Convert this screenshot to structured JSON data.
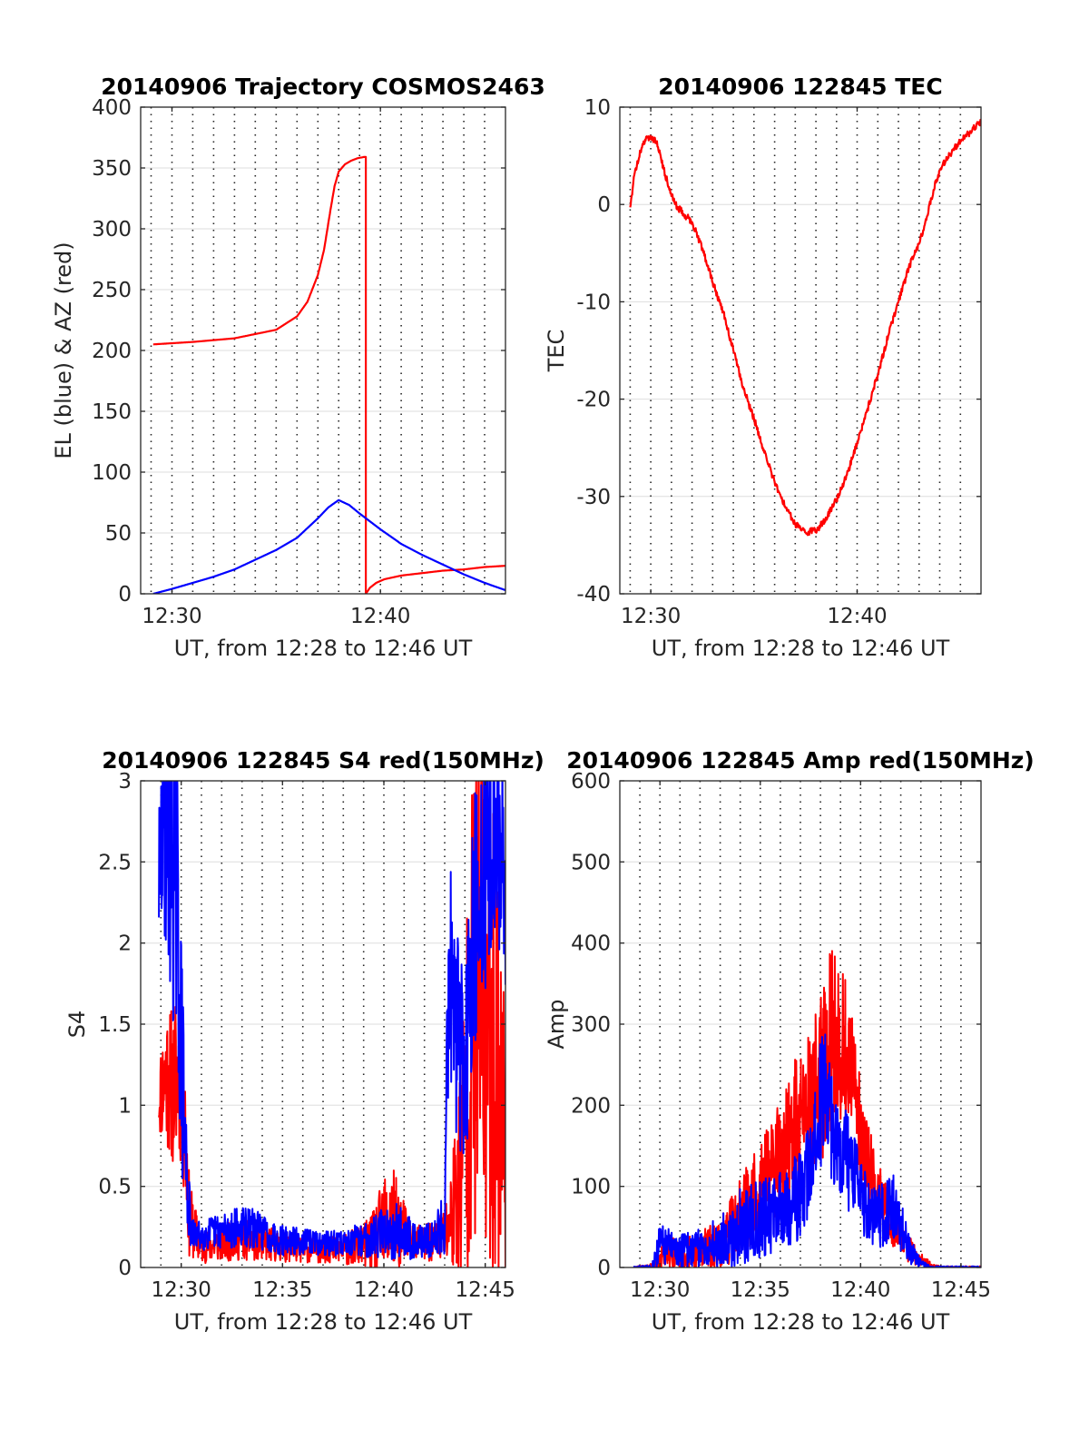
{
  "chart_data": [
    {
      "type": "line",
      "title": "20140906 Trajectory COSMOS2463",
      "xlabel": "UT, from 12:28 to 12:46 UT",
      "ylabel": "EL (blue) & AZ (red)",
      "x_unit": "minutes of hour 12 UT",
      "xlim": [
        28.5,
        46
      ],
      "ylim": [
        0,
        400
      ],
      "xticks": [
        {
          "value": 30,
          "label": "12:30"
        },
        {
          "value": 40,
          "label": "12:40"
        }
      ],
      "yticks": [
        0,
        50,
        100,
        150,
        200,
        250,
        300,
        350,
        400
      ],
      "minor_grid_x_step": 1,
      "grid": true,
      "series": [
        {
          "color": "#ff0000",
          "style": "smooth",
          "x": [
            29.1,
            31,
            33,
            35,
            36,
            36.5,
            37,
            37.3,
            37.6,
            37.8,
            38,
            38.3,
            38.6,
            38.9,
            39.2,
            39.3,
            39.3,
            39.5,
            39.8,
            40.2,
            41,
            42,
            43,
            44,
            45,
            46
          ],
          "y": [
            205,
            207,
            210,
            217,
            228,
            240,
            262,
            283,
            315,
            335,
            347,
            353,
            356,
            358,
            359,
            359,
            0,
            5,
            9,
            12,
            15,
            17,
            19,
            20,
            22,
            23
          ]
        },
        {
          "color": "#0000ff",
          "style": "smooth",
          "x": [
            29.1,
            30,
            31,
            32,
            33,
            34,
            35,
            36,
            37,
            37.5,
            38,
            38.5,
            39,
            40,
            41,
            42,
            43,
            44,
            45,
            46
          ],
          "y": [
            0,
            4,
            9,
            14,
            20,
            28,
            36,
            46,
            62,
            71,
            77,
            73,
            66,
            53,
            41,
            32,
            24,
            16,
            9,
            3
          ]
        }
      ]
    },
    {
      "type": "line",
      "title": "20140906 122845 TEC",
      "xlabel": "UT, from 12:28 to 12:46 UT",
      "ylabel": "TEC",
      "x_unit": "minutes of hour 12 UT",
      "xlim": [
        28.5,
        46
      ],
      "ylim": [
        -40,
        10
      ],
      "xticks": [
        {
          "value": 30,
          "label": "12:30"
        },
        {
          "value": 40,
          "label": "12:40"
        }
      ],
      "yticks": [
        -40,
        -30,
        -20,
        -10,
        0,
        10
      ],
      "minor_grid_x_step": 1,
      "grid": true,
      "series": [
        {
          "color": "#ff0000",
          "style": "smooth",
          "noise": 0.35,
          "x": [
            29,
            29.2,
            29.5,
            29.8,
            30.3,
            30.7,
            31.2,
            31.6,
            32,
            32.5,
            33,
            33.5,
            34,
            34.5,
            35,
            35.5,
            36,
            36.5,
            37,
            37.5,
            38,
            38.5,
            39,
            39.5,
            40,
            40.5,
            41,
            41.5,
            42,
            42.5,
            43,
            43.3,
            43.7,
            44,
            44.5,
            45,
            45.5,
            46
          ],
          "y": [
            -0.3,
            3,
            5.5,
            7,
            6.5,
            3,
            0,
            -1,
            -1.8,
            -4.5,
            -8,
            -11,
            -15,
            -19,
            -22,
            -25.5,
            -28.5,
            -31,
            -32.8,
            -33.7,
            -33.5,
            -32.3,
            -30.3,
            -27.8,
            -24.5,
            -21,
            -17.5,
            -13.5,
            -10,
            -6.5,
            -4,
            -1.8,
            1.5,
            3.5,
            5.2,
            6.5,
            7.5,
            8.5
          ]
        }
      ]
    },
    {
      "type": "line",
      "title": "20140906 122845 S4 red(150MHz)",
      "xlabel": "UT, from 12:28 to 12:46 UT",
      "ylabel": "S4",
      "x_unit": "minutes of hour 12 UT",
      "xlim": [
        28,
        46
      ],
      "ylim": [
        0,
        3
      ],
      "xticks": [
        {
          "value": 30,
          "label": "12:30"
        },
        {
          "value": 35,
          "label": "12:35"
        },
        {
          "value": 40,
          "label": "12:40"
        },
        {
          "value": 45,
          "label": "12:45"
        }
      ],
      "yticks": [
        0,
        0.5,
        1,
        1.5,
        2,
        2.5,
        3
      ],
      "minor_grid_x_step": 1,
      "grid": true,
      "series": [
        {
          "color": "#ff0000",
          "style": "noisy",
          "seed": 11,
          "x": [
            28.9,
            29.3,
            29.6,
            29.9,
            30.2,
            30.4,
            31,
            32,
            33,
            34,
            35,
            36,
            37,
            38,
            39,
            39.5,
            40,
            40.5,
            41,
            41.5,
            42,
            42.5,
            43,
            43.3,
            43.8,
            44.3,
            44.8,
            45.2,
            45.6,
            46
          ],
          "y": [
            1.05,
            1.2,
            1.1,
            1.25,
            0.85,
            0.3,
            0.12,
            0.15,
            0.17,
            0.15,
            0.13,
            0.11,
            0.11,
            0.11,
            0.14,
            0.16,
            0.25,
            0.28,
            0.22,
            0.16,
            0.15,
            0.16,
            0.2,
            0.3,
            0.6,
            1.5,
            1.8,
            1.6,
            1.2,
            0.8
          ],
          "noise": [
            0.15,
            0.3,
            0.3,
            0.35,
            0.3,
            0.15,
            0.06,
            0.07,
            0.08,
            0.07,
            0.06,
            0.05,
            0.05,
            0.06,
            0.08,
            0.12,
            0.2,
            0.2,
            0.12,
            0.07,
            0.07,
            0.08,
            0.12,
            0.2,
            0.5,
            0.9,
            1.1,
            1.0,
            0.9,
            0.6
          ]
        },
        {
          "color": "#0000ff",
          "style": "noisy",
          "seed": 29,
          "x": [
            28.9,
            29.2,
            29.5,
            29.8,
            30.1,
            30.3,
            30.5,
            31,
            32,
            33,
            33.5,
            34,
            35,
            36,
            37,
            38,
            39,
            40,
            40.5,
            41,
            41.5,
            42,
            42.5,
            43,
            43.2,
            43.5,
            44,
            44.5,
            45,
            45.5,
            46
          ],
          "y": [
            2.4,
            2.8,
            2.6,
            2.2,
            1.0,
            0.5,
            0.2,
            0.2,
            0.23,
            0.25,
            0.24,
            0.22,
            0.17,
            0.16,
            0.15,
            0.15,
            0.17,
            0.22,
            0.24,
            0.2,
            0.17,
            0.16,
            0.18,
            0.3,
            2.0,
            1.5,
            1.2,
            2.0,
            2.5,
            2.7,
            2.5
          ],
          "noise": [
            0.3,
            0.5,
            0.6,
            0.6,
            0.4,
            0.2,
            0.06,
            0.06,
            0.07,
            0.08,
            0.08,
            0.07,
            0.06,
            0.05,
            0.05,
            0.05,
            0.07,
            0.1,
            0.12,
            0.1,
            0.07,
            0.06,
            0.08,
            0.15,
            0.6,
            0.4,
            0.4,
            0.6,
            0.5,
            0.4,
            0.5
          ]
        }
      ]
    },
    {
      "type": "line",
      "title": "20140906 122845 Amp red(150MHz)",
      "xlabel": "UT, from 12:28 to 12:46 UT",
      "ylabel": "Amp",
      "x_unit": "minutes of hour 12 UT",
      "xlim": [
        28,
        46
      ],
      "ylim": [
        0,
        600
      ],
      "xticks": [
        {
          "value": 30,
          "label": "12:30"
        },
        {
          "value": 35,
          "label": "12:35"
        },
        {
          "value": 40,
          "label": "12:40"
        },
        {
          "value": 45,
          "label": "12:45"
        }
      ],
      "yticks": [
        0,
        100,
        200,
        300,
        400,
        500,
        600
      ],
      "minor_grid_x_step": 1,
      "grid": true,
      "series": [
        {
          "color": "#ff0000",
          "style": "noisy",
          "seed": 47,
          "x": [
            28.7,
            29.5,
            30,
            30.5,
            31,
            32,
            33,
            34,
            35,
            35.5,
            36,
            36.5,
            37,
            37.5,
            38,
            38.3,
            38.6,
            39,
            39.4,
            39.8,
            40.2,
            40.6,
            41,
            41.5,
            42,
            42.5,
            43,
            43.5,
            44,
            45,
            46
          ],
          "y": [
            0,
            0,
            10,
            20,
            15,
            20,
            30,
            60,
            100,
            120,
            140,
            160,
            190,
            210,
            230,
            260,
            290,
            280,
            250,
            200,
            150,
            110,
            80,
            60,
            40,
            20,
            10,
            3,
            0,
            0,
            0
          ],
          "noise": [
            1,
            2,
            10,
            15,
            12,
            15,
            20,
            30,
            40,
            40,
            45,
            50,
            55,
            60,
            65,
            70,
            70,
            65,
            55,
            45,
            35,
            30,
            25,
            20,
            15,
            10,
            5,
            2,
            1,
            1,
            1
          ]
        },
        {
          "color": "#0000ff",
          "style": "noisy",
          "seed": 83,
          "x": [
            28.7,
            29.6,
            30,
            30.5,
            31,
            32,
            33,
            33.5,
            34,
            35,
            36,
            37,
            37.5,
            38,
            38.3,
            38.6,
            39,
            39.5,
            40,
            40.5,
            41,
            41.5,
            42,
            42.5,
            43,
            43.5,
            44,
            45,
            46
          ],
          "y": [
            0,
            0,
            30,
            25,
            20,
            25,
            30,
            40,
            50,
            60,
            70,
            90,
            120,
            200,
            230,
            170,
            150,
            120,
            90,
            70,
            60,
            80,
            50,
            20,
            5,
            0,
            0,
            0,
            0
          ],
          "noise": [
            1,
            2,
            18,
            15,
            14,
            15,
            20,
            25,
            30,
            30,
            30,
            35,
            40,
            50,
            50,
            45,
            40,
            35,
            30,
            25,
            25,
            30,
            20,
            10,
            3,
            1,
            1,
            1,
            1
          ]
        }
      ]
    }
  ]
}
